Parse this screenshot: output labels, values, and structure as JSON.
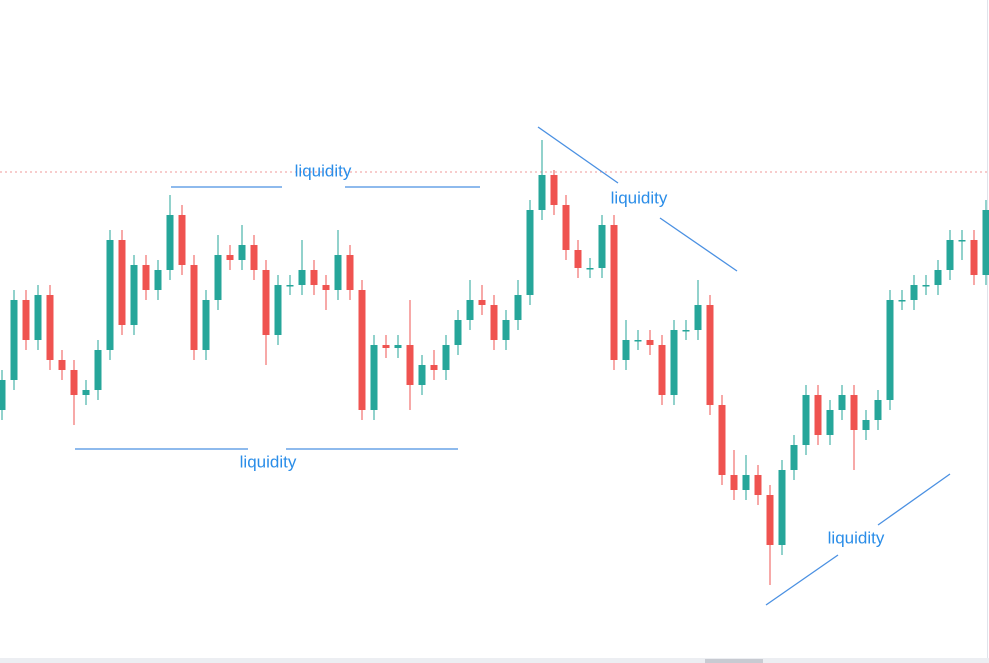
{
  "chart_data": {
    "type": "candlestick",
    "ylim": [
      0,
      663
    ],
    "up_color": "#26a69a",
    "down_color": "#ef5350",
    "level": 491,
    "level_color": "#ef9a9a",
    "annotations": [
      "liquidity",
      "liquidity",
      "liquidity",
      "liquidity"
    ],
    "open": [
      253,
      283,
      363,
      323,
      368,
      303,
      293,
      268,
      273,
      313,
      423,
      338,
      398,
      373,
      393,
      448,
      398,
      313,
      363,
      408,
      403,
      418,
      393,
      328,
      378,
      378,
      393,
      378,
      373,
      408,
      373,
      253,
      318,
      315,
      318,
      278,
      298,
      293,
      318,
      343,
      363,
      358,
      323,
      343,
      368,
      453,
      488,
      458,
      413,
      395,
      395,
      438,
      303,
      323,
      323,
      318,
      268,
      333,
      333,
      358,
      258,
      188,
      173,
      188,
      168,
      118,
      193,
      218,
      268,
      228,
      253,
      268,
      233,
      243,
      263,
      363,
      363,
      378,
      378,
      393,
      423,
      423,
      388
    ],
    "high": [
      293,
      373,
      373,
      378,
      378,
      313,
      303,
      283,
      323,
      433,
      433,
      408,
      408,
      403,
      468,
      458,
      408,
      373,
      428,
      418,
      438,
      428,
      403,
      388,
      388,
      423,
      403,
      388,
      433,
      418,
      383,
      328,
      328,
      328,
      363,
      308,
      313,
      328,
      353,
      383,
      378,
      368,
      353,
      383,
      463,
      523,
      493,
      468,
      423,
      405,
      448,
      448,
      343,
      333,
      333,
      328,
      343,
      343,
      383,
      368,
      268,
      213,
      208,
      198,
      178,
      203,
      228,
      278,
      278,
      263,
      278,
      278,
      253,
      273,
      373,
      373,
      388,
      388,
      403,
      433,
      433,
      433,
      463
    ],
    "low": [
      243,
      273,
      313,
      313,
      293,
      283,
      238,
      258,
      263,
      303,
      328,
      328,
      363,
      363,
      383,
      388,
      303,
      303,
      353,
      393,
      393,
      383,
      298,
      318,
      368,
      368,
      368,
      353,
      363,
      363,
      243,
      243,
      305,
      305,
      253,
      268,
      283,
      283,
      308,
      333,
      348,
      313,
      313,
      333,
      358,
      443,
      448,
      403,
      385,
      385,
      385,
      293,
      293,
      313,
      308,
      258,
      258,
      323,
      323,
      248,
      178,
      163,
      163,
      158,
      78,
      108,
      183,
      208,
      218,
      218,
      243,
      193,
      223,
      233,
      253,
      353,
      353,
      368,
      368,
      383,
      403,
      378,
      378
    ],
    "close": [
      283,
      363,
      323,
      368,
      303,
      293,
      268,
      273,
      313,
      423,
      338,
      398,
      373,
      393,
      448,
      398,
      313,
      363,
      408,
      403,
      418,
      393,
      328,
      378,
      378,
      393,
      378,
      373,
      408,
      373,
      253,
      318,
      315,
      318,
      278,
      298,
      293,
      318,
      343,
      363,
      358,
      323,
      343,
      368,
      453,
      488,
      458,
      413,
      395,
      395,
      438,
      303,
      323,
      323,
      318,
      268,
      333,
      333,
      358,
      258,
      188,
      173,
      188,
      168,
      118,
      193,
      218,
      268,
      228,
      253,
      268,
      233,
      243,
      263,
      363,
      363,
      378,
      378,
      393,
      423,
      423,
      388,
      453
    ]
  }
}
